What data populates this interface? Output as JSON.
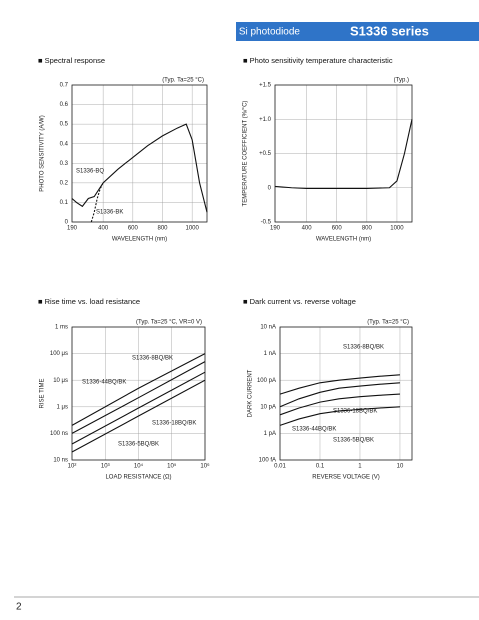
{
  "header": {
    "product_type": "Si photodiode",
    "series": "S1336 series"
  },
  "page_number": "2",
  "chart_data": [
    {
      "type": "line",
      "title": "■ Spectral response",
      "annotation": "(Typ. Ta=25 °C)",
      "x_label": "WAVELENGTH (nm)",
      "y_label": "PHOTO SENSITIVITY (A/W)",
      "xlim": [
        190,
        1100
      ],
      "xticks": [
        190,
        400,
        600,
        800,
        1000
      ],
      "ylim": [
        0,
        0.7
      ],
      "yticks": [
        0,
        0.1,
        0.2,
        0.3,
        0.4,
        0.5,
        0.6,
        0.7
      ],
      "grid": true,
      "series": [
        {
          "name": "S1336-BQ",
          "color": "#111111",
          "dash": false,
          "x": [
            190,
            220,
            260,
            300,
            340,
            400,
            500,
            600,
            700,
            800,
            900,
            960,
            1000,
            1050,
            1100
          ],
          "values": [
            0.12,
            0.1,
            0.08,
            0.12,
            0.13,
            0.2,
            0.27,
            0.33,
            0.39,
            0.44,
            0.48,
            0.5,
            0.42,
            0.2,
            0.05
          ]
        },
        {
          "name": "S1336-BK",
          "color": "#111111",
          "dash": true,
          "x": [
            320,
            340,
            360,
            380,
            400
          ],
          "values": [
            0.0,
            0.05,
            0.12,
            0.17,
            0.2
          ]
        }
      ]
    },
    {
      "type": "line",
      "title": "■ Photo sensitivity temperature characteristic",
      "annotation": "(Typ.)",
      "x_label": "WAVELENGTH (nm)",
      "y_label": "TEMPERATURE COEFFICIENT (%/°C)",
      "xlim": [
        190,
        1100
      ],
      "xticks": [
        190,
        400,
        600,
        800,
        1000
      ],
      "ylim": [
        -0.5,
        1.5
      ],
      "yticks": [
        {
          "value": -0.5,
          "label": "-0.5"
        },
        0,
        {
          "value": 0.5,
          "label": "+0.5"
        },
        {
          "value": 1.0,
          "label": "+1.0"
        },
        {
          "value": 1.5,
          "label": "+1.5"
        }
      ],
      "grid": true,
      "series": [
        {
          "color": "#111111",
          "dash": false,
          "x": [
            190,
            300,
            400,
            600,
            800,
            950,
            1000,
            1050,
            1100
          ],
          "values": [
            0.02,
            0,
            -0.01,
            -0.01,
            -0.01,
            0,
            0.1,
            0.5,
            1.0
          ]
        }
      ]
    },
    {
      "type": "line",
      "title": "■ Rise time vs. load resistance",
      "annotation": "(Typ. Ta=25 °C, VR=0 V)",
      "x_label": "LOAD RESISTANCE (Ω)",
      "y_label": "RISE TIME",
      "xlog": true,
      "ylog": true,
      "xlim": [
        100,
        1000000
      ],
      "xticks": [
        {
          "value": 100,
          "label": "10²"
        },
        {
          "value": 1000,
          "label": "10³"
        },
        {
          "value": 10000,
          "label": "10⁴"
        },
        {
          "value": 100000,
          "label": "10⁵"
        },
        {
          "value": 1000000,
          "label": "10⁶"
        }
      ],
      "ylim": [
        1e-08,
        0.001
      ],
      "yticks": [
        {
          "value": 1e-08,
          "label": "10 ns"
        },
        {
          "value": 1e-07,
          "label": "100 ns"
        },
        {
          "value": 1e-06,
          "label": "1 μs"
        },
        {
          "value": 1e-05,
          "label": "10 μs"
        },
        {
          "value": 0.0001,
          "label": "100 μs"
        },
        {
          "value": 0.001,
          "label": "1 ms"
        }
      ],
      "grid": true,
      "series": [
        {
          "name": "S1336-8BQ/BK",
          "color": "#111111",
          "dash": false,
          "x": [
            100,
            10000,
            1000000
          ],
          "values": [
            2e-07,
            5e-06,
            0.0001
          ]
        },
        {
          "name": "S1336-44BQ/BK",
          "color": "#111111",
          "dash": false,
          "x": [
            100,
            10000,
            1000000
          ],
          "values": [
            1e-07,
            2.2e-06,
            5e-05
          ]
        },
        {
          "name": "S1336-18BQ/BK",
          "color": "#111111",
          "dash": false,
          "x": [
            100,
            10000,
            1000000
          ],
          "values": [
            4e-08,
            9e-07,
            2e-05
          ]
        },
        {
          "name": "S1336-5BQ/BK",
          "color": "#111111",
          "dash": false,
          "x": [
            100,
            10000,
            1000000
          ],
          "values": [
            2e-08,
            4.5e-07,
            1e-05
          ]
        }
      ]
    },
    {
      "type": "line",
      "title": "■ Dark current vs. reverse voltage",
      "annotation": "(Typ. Ta=25 °C)",
      "x_label": "REVERSE VOLTAGE (V)",
      "y_label": "DARK CURRENT",
      "xlog": true,
      "ylog": true,
      "xlim": [
        0.01,
        20
      ],
      "xticks": [
        0.01,
        0.1,
        1,
        10
      ],
      "ylim": [
        1e-13,
        1e-08
      ],
      "yticks": [
        {
          "value": 1e-13,
          "label": "100 fA"
        },
        {
          "value": 1e-12,
          "label": "1 pA"
        },
        {
          "value": 1e-11,
          "label": "10 pA"
        },
        {
          "value": 1e-10,
          "label": "100 pA"
        },
        {
          "value": 1e-09,
          "label": "1 nA"
        },
        {
          "value": 1e-08,
          "label": "10 nA"
        }
      ],
      "grid": true,
      "series": [
        {
          "name": "S1336-8BQ/BK",
          "color": "#111111",
          "dash": false,
          "x": [
            0.01,
            0.03,
            0.1,
            0.3,
            1,
            3,
            10
          ],
          "values": [
            3e-11,
            5e-11,
            8e-11,
            1e-10,
            1.2e-10,
            1.4e-10,
            1.6e-10
          ]
        },
        {
          "name": "S1336-44BQ/BK",
          "color": "#111111",
          "dash": false,
          "x": [
            0.01,
            0.03,
            0.1,
            0.3,
            1,
            3,
            10
          ],
          "values": [
            1e-11,
            2e-11,
            3.5e-11,
            5e-11,
            6e-11,
            7e-11,
            8e-11
          ]
        },
        {
          "name": "S1336-18BQ/BK",
          "color": "#111111",
          "dash": false,
          "x": [
            0.01,
            0.03,
            0.1,
            0.3,
            1,
            3,
            10
          ],
          "values": [
            5e-12,
            9e-12,
            1.5e-11,
            2e-11,
            2.4e-11,
            2.7e-11,
            3e-11
          ]
        },
        {
          "name": "S1336-5BQ/BK",
          "color": "#111111",
          "dash": false,
          "x": [
            0.01,
            0.03,
            0.1,
            0.3,
            1,
            3,
            10
          ],
          "values": [
            2e-12,
            3.5e-12,
            5.5e-12,
            7e-12,
            8e-12,
            9e-12,
            1e-11
          ]
        }
      ]
    }
  ]
}
